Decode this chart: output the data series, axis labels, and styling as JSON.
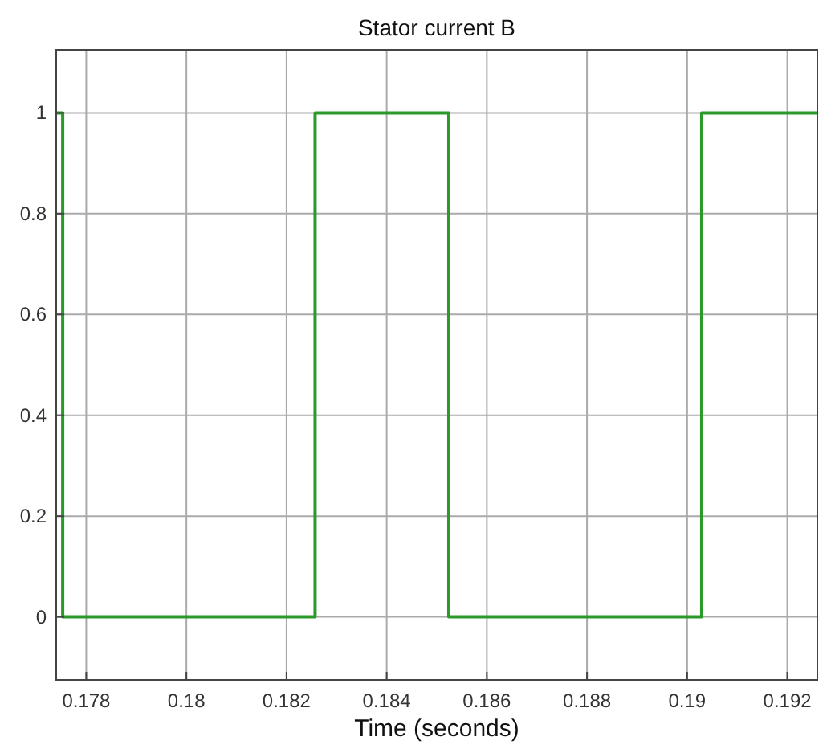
{
  "chart_data": {
    "type": "step",
    "title": "Stator current B",
    "xlabel": "Time (seconds)",
    "x": [
      0.1774,
      0.17753,
      0.18257,
      0.18524,
      0.19029,
      0.1926
    ],
    "series": [
      {
        "color": "#2a9a2a",
        "values": [
          1,
          0,
          1,
          0,
          1,
          1
        ]
      }
    ],
    "xlim": [
      0.1774,
      0.1926
    ],
    "xticks": [
      0.178,
      0.18,
      0.182,
      0.184,
      0.186,
      0.188,
      0.19,
      0.192
    ],
    "ylim": [
      -0.125,
      1.125
    ],
    "yticks": [
      0,
      0.2,
      0.4,
      0.6,
      0.8,
      1
    ],
    "grid": true
  }
}
